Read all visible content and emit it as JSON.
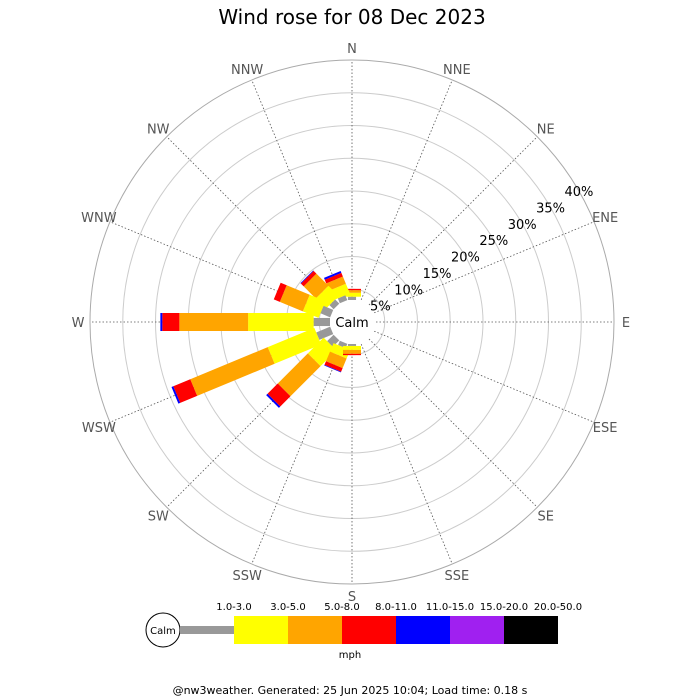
{
  "chart_data": {
    "type": "wind-rose",
    "title": "Wind rose for 08 Dec 2023",
    "directions": [
      "N",
      "NNE",
      "NE",
      "ENE",
      "E",
      "ESE",
      "SE",
      "SSE",
      "S",
      "SSW",
      "SW",
      "WSW",
      "W",
      "WNW",
      "NW",
      "NNW"
    ],
    "ring_labels": [
      "5%",
      "10%",
      "15%",
      "20%",
      "25%",
      "30%",
      "35%",
      "40%"
    ],
    "ring_values": [
      5,
      10,
      15,
      20,
      25,
      30,
      35,
      40
    ],
    "rmax": 40,
    "calm_label": "Calm",
    "unit": "mph",
    "bins": [
      {
        "label": "1.0-3.0",
        "color": "#999999"
      },
      {
        "label": "3.0-5.0",
        "color": "#ffff00"
      },
      {
        "label": "5.0-8.0",
        "color": "#ffa500"
      },
      {
        "label": "8.0-11.0",
        "color": "#ff0000"
      },
      {
        "label": "11.0-15.0",
        "color": "#0000ff"
      },
      {
        "label": "15.0-20.0",
        "color": "#a020f0"
      },
      {
        "label": "20.0-50.0",
        "color": "#000000"
      }
    ],
    "series": [
      {
        "direction": "N",
        "values": [
          0.5,
          0.6,
          0.4,
          0.2,
          0,
          0,
          0
        ]
      },
      {
        "direction": "NNW",
        "values": [
          0.8,
          1.6,
          1.2,
          0.6,
          0.3,
          0,
          0
        ]
      },
      {
        "direction": "NW",
        "values": [
          0.9,
          2.2,
          2.6,
          0.6,
          0.1,
          0,
          0
        ]
      },
      {
        "direction": "WNW",
        "values": [
          1.6,
          2.6,
          3.8,
          1.0,
          0,
          0,
          0
        ]
      },
      {
        "direction": "W",
        "values": [
          2.5,
          10.0,
          10.5,
          2.6,
          0.3,
          0,
          0
        ]
      },
      {
        "direction": "WSW",
        "values": [
          2.3,
          7.7,
          12.8,
          2.8,
          0.3,
          0,
          0
        ]
      },
      {
        "direction": "SW",
        "values": [
          1.4,
          3.4,
          6.5,
          2.2,
          0.3,
          0,
          0
        ]
      },
      {
        "direction": "SSW",
        "values": [
          0.7,
          1.4,
          1.6,
          0.6,
          0.1,
          0,
          0
        ]
      },
      {
        "direction": "S",
        "values": [
          0.3,
          0.6,
          0.6,
          0.2,
          0,
          0,
          0
        ]
      }
    ]
  },
  "footer": "@nw3weather. Generated: 25 Jun 2025 10:04; Load time: 0.18 s"
}
